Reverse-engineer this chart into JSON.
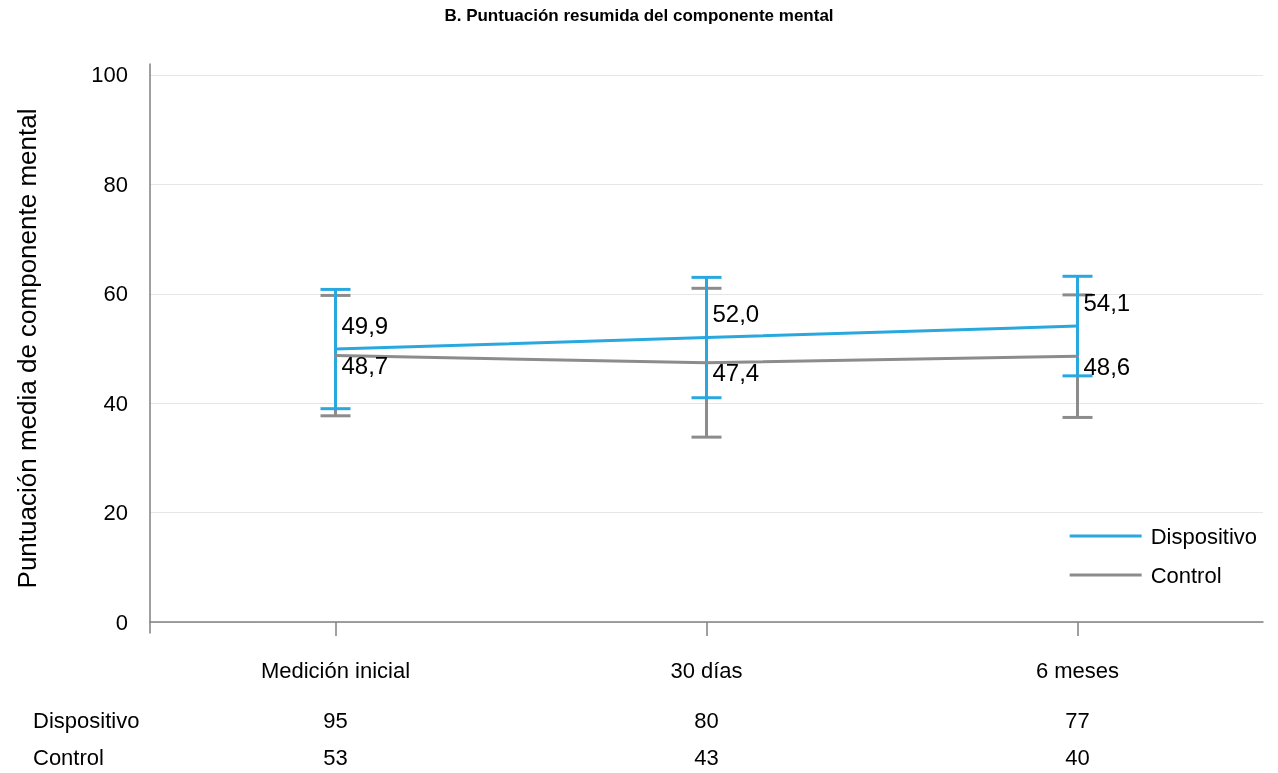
{
  "chart_data": {
    "type": "line",
    "title": "B. Puntuación resumida del componente mental",
    "ylabel": "Puntuación media de componente mental",
    "categories": [
      "Medición inicial",
      "30 días",
      "6 meses"
    ],
    "series": [
      {
        "name": "Dispositivo",
        "color": "#29a8e0",
        "values": [
          49.9,
          52.0,
          54.1
        ],
        "errors": [
          10.9,
          11.0,
          9.1
        ],
        "value_labels": [
          "49,9",
          "52,0",
          "54,1"
        ]
      },
      {
        "name": "Control",
        "color": "#8c8c8c",
        "values": [
          48.7,
          47.4,
          48.6
        ],
        "errors": [
          11.0,
          13.6,
          11.2
        ],
        "value_labels": [
          "48,7",
          "47,4",
          "48,6"
        ]
      }
    ],
    "ylim": [
      -2,
      102
    ],
    "yticks": [
      0,
      20,
      40,
      60,
      80,
      100
    ],
    "grid": "y",
    "legend": "bottom right",
    "marker": "none",
    "line_style": "solid",
    "annotations": [
      "Dispositivo",
      "95",
      "80",
      "77",
      "Control",
      "53",
      "43",
      "40"
    ]
  }
}
